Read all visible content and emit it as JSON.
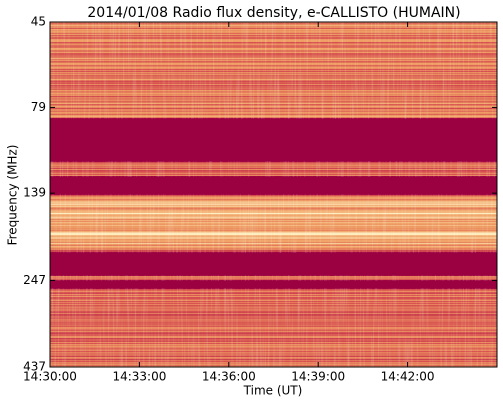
{
  "chart_data": {
    "type": "spectrogram",
    "title": "2014/01/08  Radio flux density, e-CALLISTO (HUMAIN)",
    "x_label": "Time (UT)",
    "y_label": "Frequency (MHz)",
    "xlim": [
      "14:30:00",
      "14:45:00"
    ],
    "xticks": [
      "14:30:00",
      "14:33:00",
      "14:36:00",
      "14:39:00",
      "14:42:00"
    ],
    "ylim": [
      437,
      45
    ],
    "yticks": [
      45,
      79,
      139,
      247,
      437
    ],
    "yscale": "log"
  }
}
